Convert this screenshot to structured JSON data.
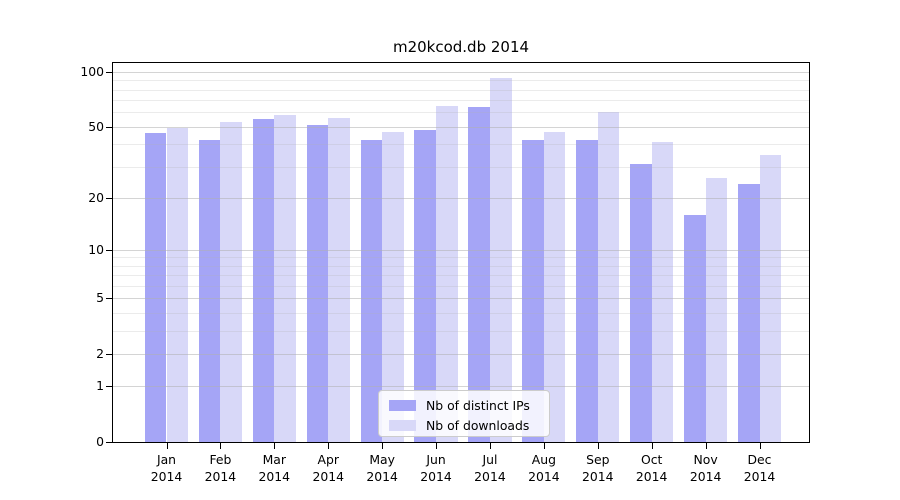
{
  "title": "m20kcod.db 2014",
  "chart_data": {
    "type": "bar",
    "title": "m20kcod.db 2014",
    "categories": [
      "Jan 2014",
      "Feb 2014",
      "Mar 2014",
      "Apr 2014",
      "May 2014",
      "Jun 2014",
      "Jul 2014",
      "Aug 2014",
      "Sep 2014",
      "Oct 2014",
      "Nov 2014",
      "Dec 2014"
    ],
    "series": [
      {
        "name": "Nb of distinct IPs",
        "color": "#a5a5f6",
        "values": [
          46,
          42,
          55,
          51,
          42,
          48,
          64,
          42,
          42,
          31,
          16,
          24
        ]
      },
      {
        "name": "Nb of downloads",
        "color": "#d8d8f8",
        "values": [
          49,
          53,
          58,
          56,
          47,
          65,
          93,
          47,
          60,
          41,
          26,
          35
        ]
      }
    ],
    "xlabel": "",
    "ylabel": "",
    "yscale": "log10(1+x)",
    "yticks": [
      100,
      50,
      20,
      10,
      5,
      2,
      1,
      0
    ],
    "ylim": [
      0,
      113
    ],
    "grid": true,
    "grid_over_bars": true,
    "legend_position": "lower center",
    "axis_color": "#000000",
    "background": "#ffffff"
  }
}
